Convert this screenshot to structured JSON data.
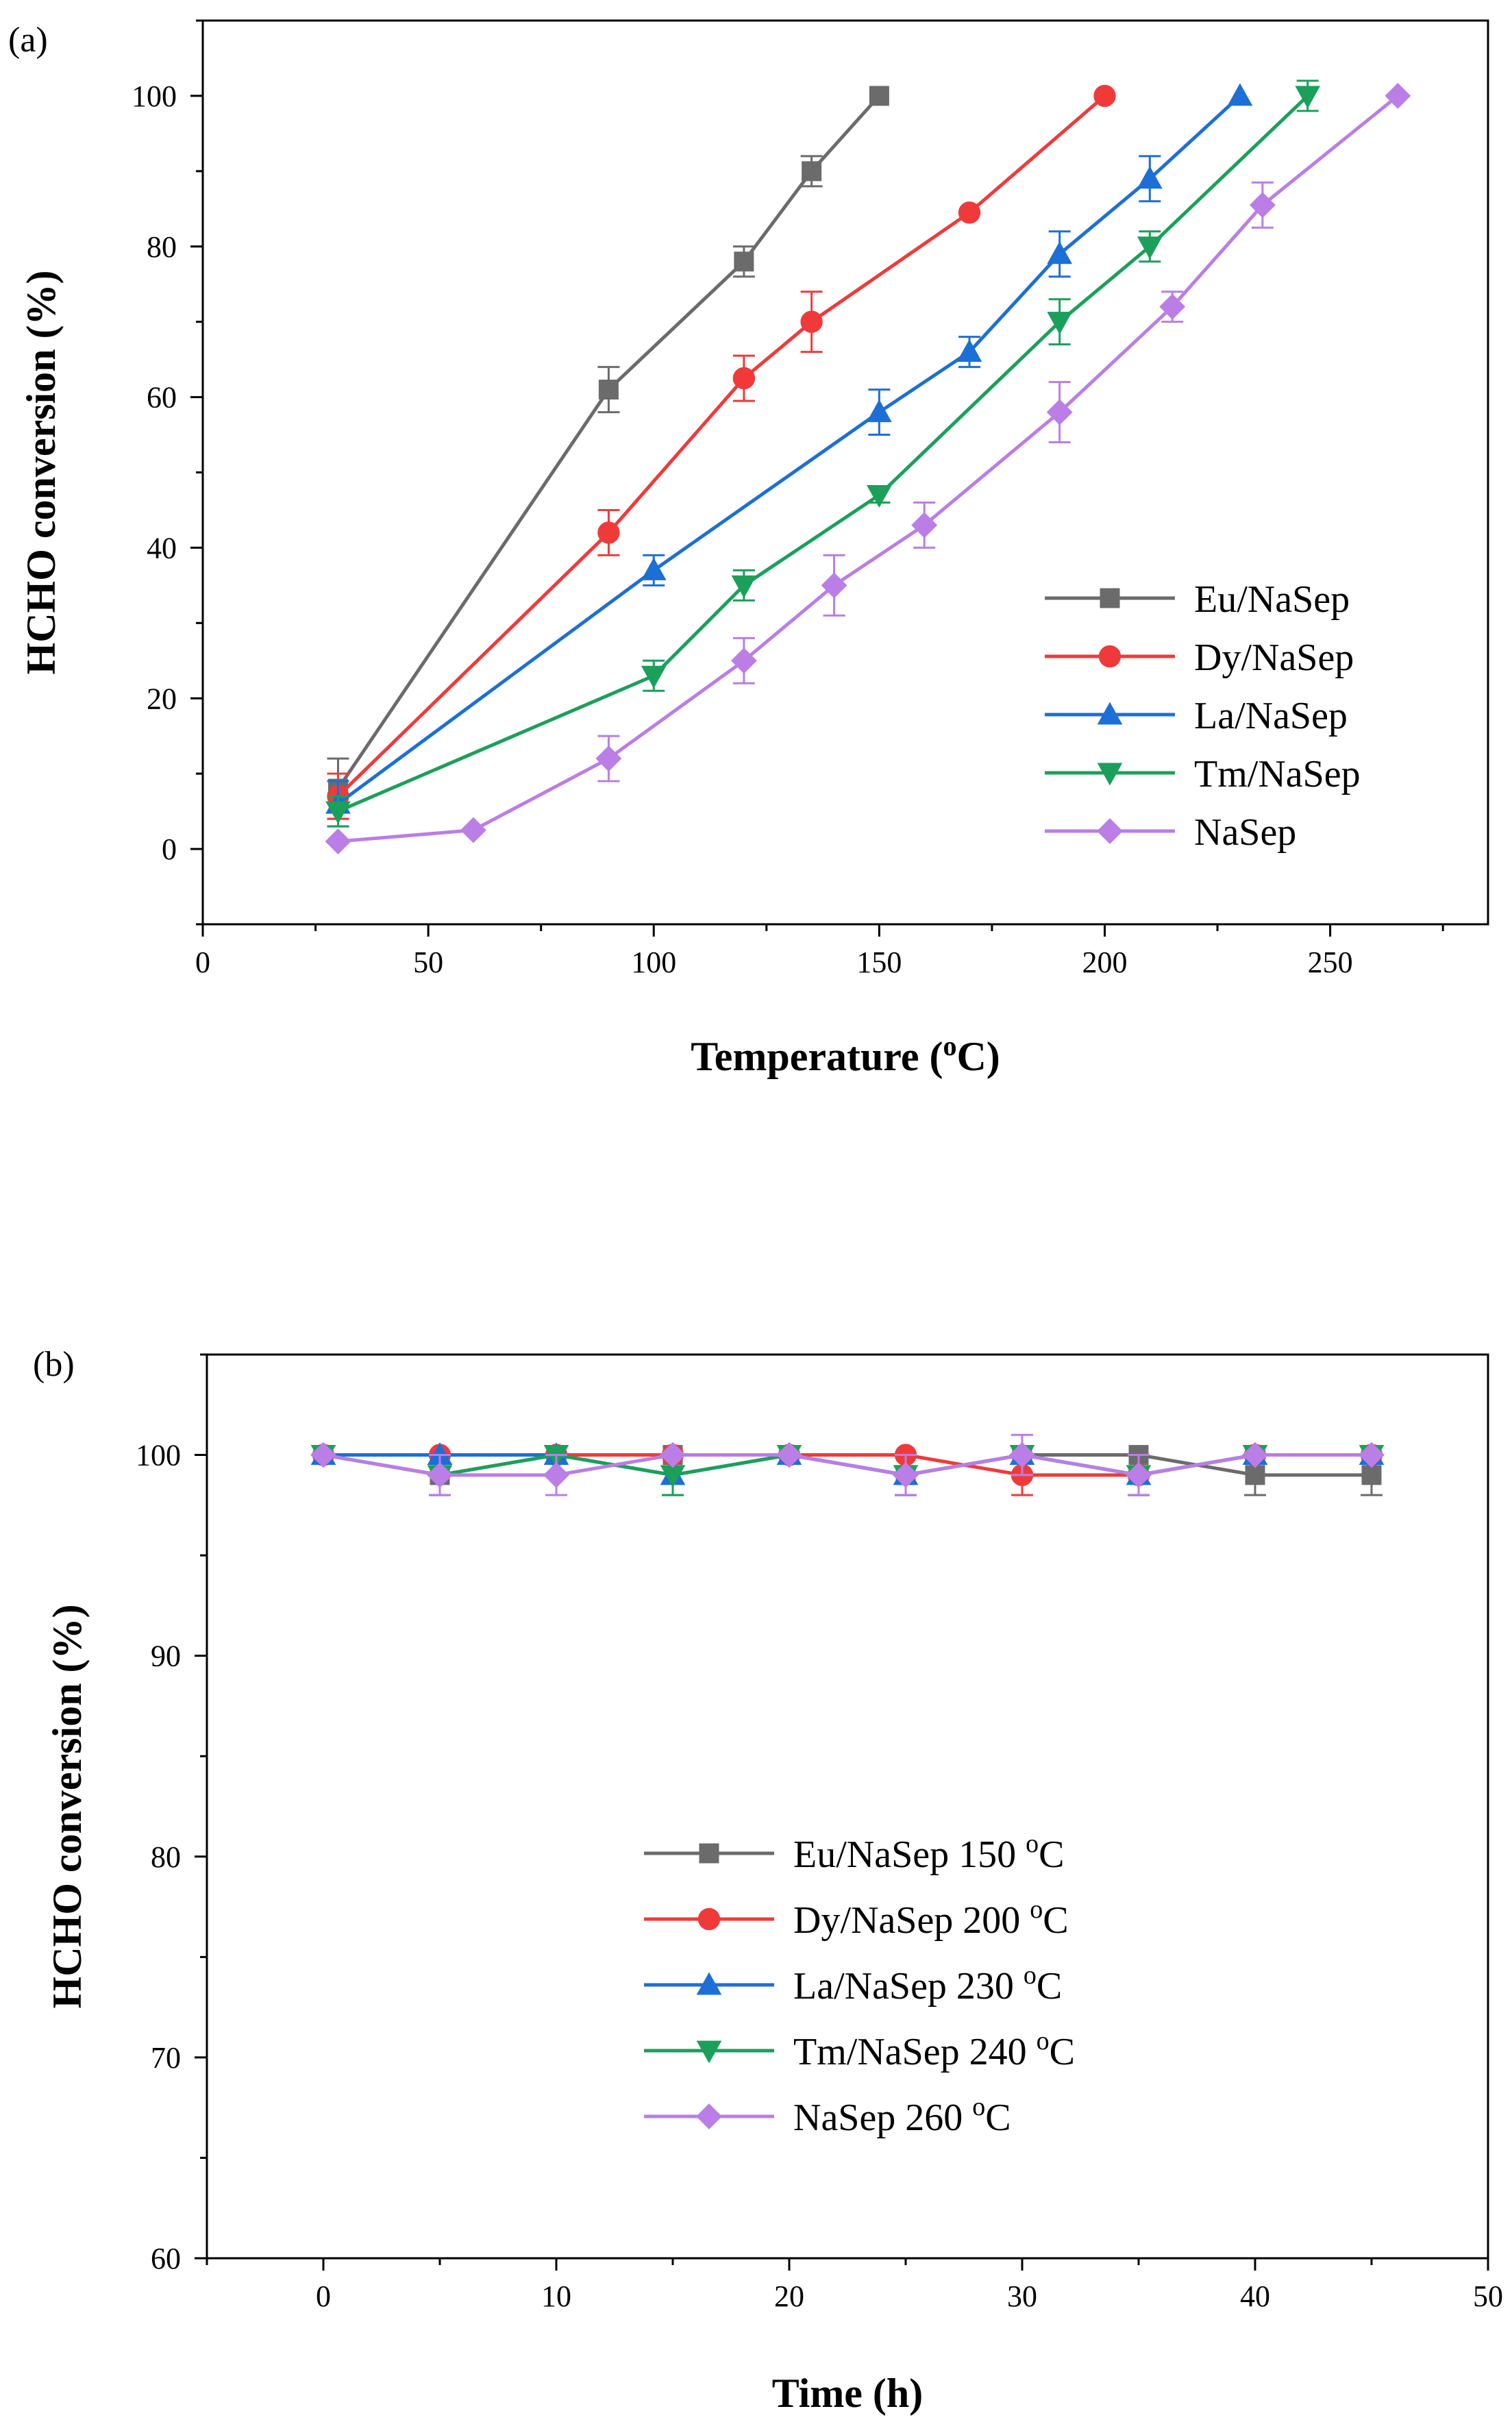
{
  "colors": {
    "Eu/NaSep": "#6b6b6b",
    "Dy/NaSep": "#f03a3a",
    "La/NaSep": "#1c6fd6",
    "Tm/NaSep": "#1aa05a",
    "NaSep": "#bb7de6"
  },
  "chart_data": [
    {
      "panel_label": "(a)",
      "type": "line",
      "title": "",
      "xlabel": "Temperature (oC)",
      "xlabel_parts": {
        "pre": "Temperature (",
        "sup": "o",
        "post": "C)"
      },
      "ylabel": "HCHO conversion (%)",
      "xlim": [
        0,
        285
      ],
      "ylim": [
        -10,
        110
      ],
      "xticks": [
        0,
        50,
        100,
        150,
        200,
        250
      ],
      "yticks": [
        0,
        20,
        40,
        60,
        80,
        100
      ],
      "grid": false,
      "legend_position": "right-middle",
      "series": [
        {
          "name": "Eu/NaSep",
          "marker": "square",
          "x": [
            30,
            90,
            120,
            135,
            150
          ],
          "y": [
            8,
            61,
            78,
            90,
            100
          ],
          "err": [
            4,
            3,
            2,
            2,
            0
          ]
        },
        {
          "name": "Dy/NaSep",
          "marker": "circle",
          "x": [
            30,
            90,
            120,
            135,
            170,
            200
          ],
          "y": [
            7,
            42,
            62.5,
            70,
            84.5,
            100
          ],
          "err": [
            3,
            3,
            3,
            4,
            0,
            0
          ]
        },
        {
          "name": "La/NaSep",
          "marker": "triangle-up",
          "x": [
            30,
            100,
            150,
            170,
            190,
            210,
            230
          ],
          "y": [
            6,
            37,
            58,
            66,
            79,
            89,
            100
          ],
          "err": [
            3,
            2,
            3,
            2,
            3,
            3,
            0
          ]
        },
        {
          "name": "Tm/NaSep",
          "marker": "triangle-down",
          "x": [
            30,
            100,
            120,
            150,
            190,
            210,
            245
          ],
          "y": [
            5,
            23,
            35,
            47,
            70,
            80,
            100
          ],
          "err": [
            2,
            2,
            2,
            1,
            3,
            2,
            2
          ]
        },
        {
          "name": "NaSep",
          "marker": "diamond",
          "x": [
            30,
            60,
            90,
            120,
            140,
            160,
            190,
            215,
            235,
            265
          ],
          "y": [
            1,
            2.5,
            12,
            25,
            35,
            43,
            58,
            72,
            85.5,
            100
          ],
          "err": [
            0,
            0,
            3,
            3,
            4,
            3,
            4,
            2,
            3,
            0
          ]
        }
      ]
    },
    {
      "panel_label": "(b)",
      "type": "line",
      "title": "",
      "xlabel": "Time (h)",
      "ylabel": "HCHO conversion (%)",
      "xlim": [
        -5,
        50
      ],
      "ylim": [
        60,
        105
      ],
      "xticks": [
        0,
        10,
        20,
        30,
        40,
        50
      ],
      "yticks": [
        60,
        70,
        80,
        90,
        100
      ],
      "grid": false,
      "legend_position": "center",
      "series": [
        {
          "name": "Eu/NaSep",
          "legend_label": "Eu/NaSep 150",
          "temp_label": "150 oC",
          "marker": "square",
          "x": [
            0,
            5,
            10,
            15,
            20,
            25,
            30,
            35,
            40,
            45
          ],
          "y": [
            100,
            99,
            100,
            100,
            100,
            99,
            100,
            100,
            99,
            99
          ],
          "err": [
            0,
            1,
            0,
            0,
            0,
            1,
            0,
            0,
            1,
            1
          ]
        },
        {
          "name": "Dy/NaSep",
          "legend_label": "Dy/NaSep 200",
          "temp_label": "200 oC",
          "marker": "circle",
          "x": [
            0,
            5,
            10,
            15,
            20,
            25,
            30,
            35,
            40,
            45
          ],
          "y": [
            100,
            100,
            100,
            100,
            100,
            100,
            99,
            99,
            100,
            100
          ],
          "err": [
            0,
            0,
            0,
            0,
            0,
            0,
            1,
            1,
            0,
            0
          ]
        },
        {
          "name": "La/NaSep",
          "legend_label": "La/NaSep 230",
          "temp_label": "230 oC",
          "marker": "triangle-up",
          "x": [
            0,
            5,
            10,
            15,
            20,
            25,
            30,
            35,
            40,
            45
          ],
          "y": [
            100,
            100,
            100,
            99,
            100,
            99,
            100,
            99,
            100,
            100
          ],
          "err": [
            0,
            0,
            0,
            1,
            0,
            1,
            0,
            1,
            0,
            0
          ]
        },
        {
          "name": "Tm/NaSep",
          "legend_label": "Tm/NaSep 240",
          "temp_label": "240 oC",
          "marker": "triangle-down",
          "x": [
            0,
            5,
            10,
            15,
            20,
            25,
            30,
            35,
            40,
            45
          ],
          "y": [
            100,
            99,
            100,
            99,
            100,
            99,
            100,
            99,
            100,
            100
          ],
          "err": [
            0,
            1,
            0,
            1,
            0,
            1,
            0,
            1,
            0,
            0
          ]
        },
        {
          "name": "NaSep",
          "legend_label": "NaSep   260",
          "temp_label": "260 oC",
          "marker": "diamond",
          "x": [
            0,
            5,
            10,
            15,
            20,
            25,
            30,
            35,
            40,
            45
          ],
          "y": [
            100,
            99,
            99,
            100,
            100,
            99,
            100,
            99,
            100,
            100
          ],
          "err": [
            0,
            1,
            1,
            0,
            0,
            1,
            1,
            1,
            0,
            0
          ]
        }
      ]
    }
  ]
}
